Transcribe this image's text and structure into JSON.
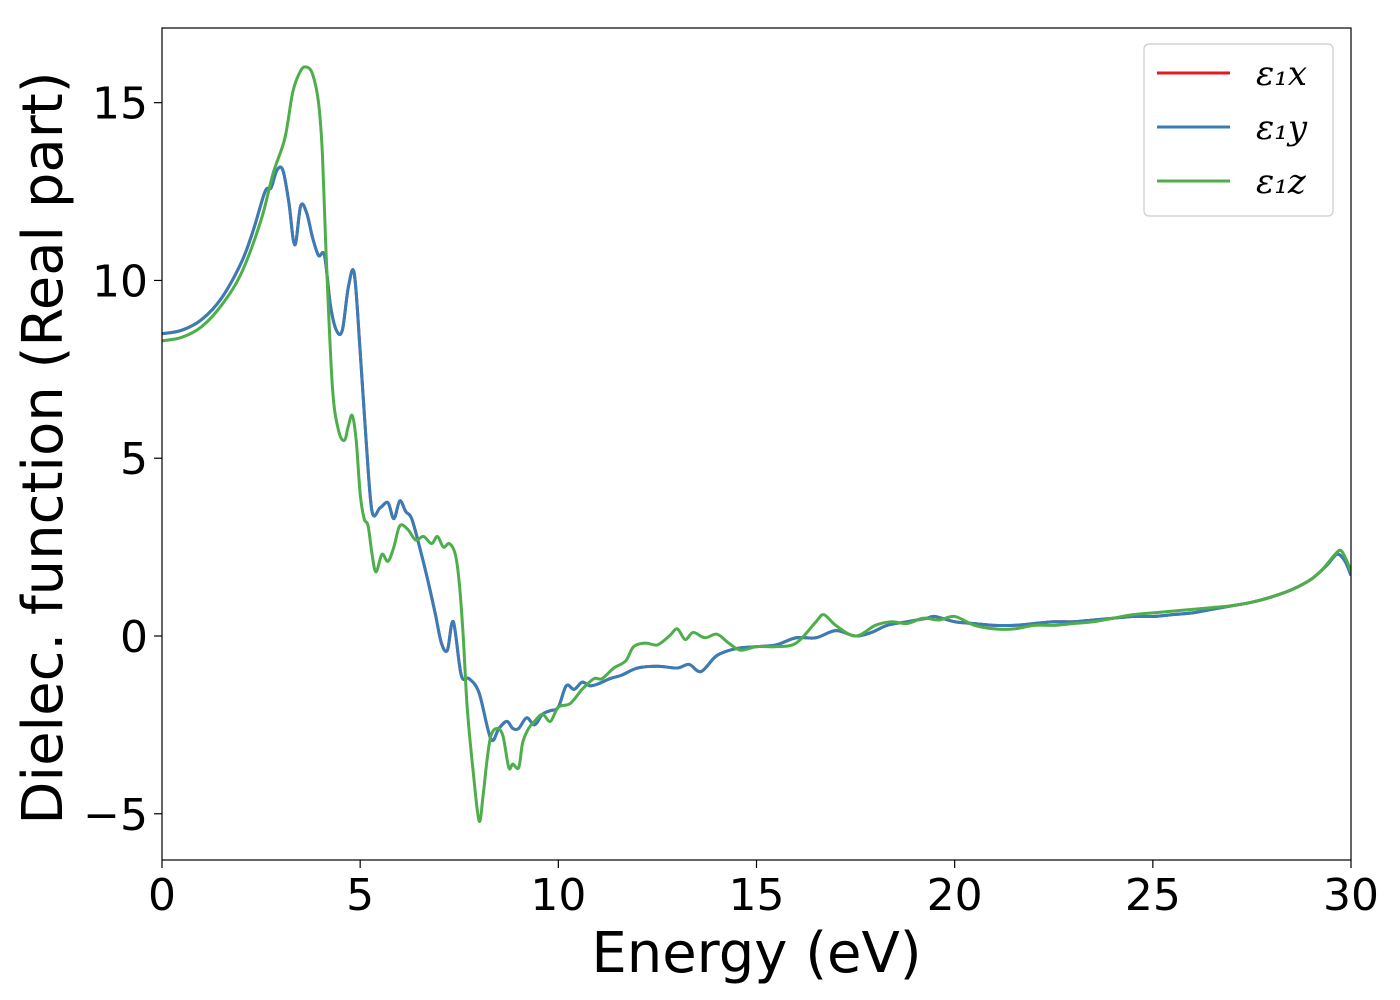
{
  "chart_data": {
    "type": "line",
    "xlabel": "Energy (eV)",
    "ylabel": "Dielec. function (Real part)",
    "xlim": [
      0,
      30
    ],
    "ylim": [
      -6.3,
      17.1
    ],
    "xticks": [
      0,
      5,
      10,
      15,
      20,
      25,
      30
    ],
    "xtick_labels": [
      "0",
      "5",
      "10",
      "15",
      "20",
      "25",
      "30"
    ],
    "yticks": [
      -5,
      0,
      5,
      10,
      15
    ],
    "ytick_labels": [
      "−5",
      "0",
      "5",
      "10",
      "15"
    ],
    "grid": false,
    "legend_position": "top-right",
    "series": [
      {
        "name": "ε₁x",
        "color": "#e41a1c",
        "x": [
          0,
          0.5,
          1,
          1.5,
          2,
          2.3,
          2.6,
          2.75,
          2.9,
          3.05,
          3.2,
          3.35,
          3.5,
          3.65,
          3.8,
          3.95,
          4.1,
          4.25,
          4.4,
          4.55,
          4.7,
          4.85,
          5,
          5.15,
          5.3,
          5.5,
          5.7,
          5.85,
          6,
          6.15,
          6.3,
          6.5,
          6.7,
          6.9,
          7.05,
          7.2,
          7.35,
          7.55,
          7.75,
          8,
          8.3,
          8.5,
          8.7,
          8.85,
          9,
          9.2,
          9.4,
          9.6,
          9.8,
          10,
          10.2,
          10.4,
          10.6,
          10.8,
          11,
          11.3,
          11.6,
          12,
          12.5,
          13,
          13.3,
          13.6,
          14,
          14.5,
          15,
          15.5,
          16,
          16.5,
          17,
          17.5,
          17.9,
          18.3,
          18.8,
          19.3,
          19.5,
          20,
          20.5,
          21,
          21.5,
          22,
          22.5,
          23,
          23.5,
          24,
          24.5,
          25,
          25.5,
          26,
          26.5,
          27,
          27.5,
          28,
          28.5,
          29,
          29.4,
          29.65,
          29.85,
          30
        ],
        "y": [
          8.5,
          8.6,
          8.9,
          9.5,
          10.5,
          11.4,
          12.5,
          12.6,
          13.1,
          13.1,
          12.2,
          11,
          12.1,
          11.9,
          11.2,
          10.7,
          10.7,
          9.3,
          8.6,
          8.6,
          9.8,
          10.2,
          8,
          5.5,
          3.5,
          3.6,
          3.75,
          3.3,
          3.8,
          3.5,
          3.3,
          2.5,
          1.6,
          0.6,
          -0.2,
          -0.4,
          0.4,
          -1.1,
          -1.2,
          -1.6,
          -2.9,
          -2.6,
          -2.4,
          -2.6,
          -2.6,
          -2.3,
          -2.5,
          -2.2,
          -2.1,
          -2,
          -1.4,
          -1.5,
          -1.3,
          -1.4,
          -1.35,
          -1.2,
          -1.1,
          -0.9,
          -0.85,
          -0.9,
          -0.8,
          -1,
          -0.55,
          -0.35,
          -0.3,
          -0.25,
          -0.05,
          -0.05,
          0.15,
          0,
          0.1,
          0.3,
          0.4,
          0.5,
          0.55,
          0.4,
          0.35,
          0.3,
          0.3,
          0.35,
          0.4,
          0.4,
          0.45,
          0.5,
          0.55,
          0.55,
          0.6,
          0.65,
          0.75,
          0.85,
          0.95,
          1.1,
          1.3,
          1.6,
          2,
          2.3,
          2.1,
          1.7
        ]
      },
      {
        "name": "ε₁y",
        "color": "#377eb8",
        "x": [
          0,
          0.5,
          1,
          1.5,
          2,
          2.3,
          2.6,
          2.75,
          2.9,
          3.05,
          3.2,
          3.35,
          3.5,
          3.65,
          3.8,
          3.95,
          4.1,
          4.25,
          4.4,
          4.55,
          4.7,
          4.85,
          5,
          5.15,
          5.3,
          5.5,
          5.7,
          5.85,
          6,
          6.15,
          6.3,
          6.5,
          6.7,
          6.9,
          7.05,
          7.2,
          7.35,
          7.55,
          7.75,
          8,
          8.3,
          8.5,
          8.7,
          8.85,
          9,
          9.2,
          9.4,
          9.6,
          9.8,
          10,
          10.2,
          10.4,
          10.6,
          10.8,
          11,
          11.3,
          11.6,
          12,
          12.5,
          13,
          13.3,
          13.6,
          14,
          14.5,
          15,
          15.5,
          16,
          16.5,
          17,
          17.5,
          17.9,
          18.3,
          18.8,
          19.3,
          19.5,
          20,
          20.5,
          21,
          21.5,
          22,
          22.5,
          23,
          23.5,
          24,
          24.5,
          25,
          25.5,
          26,
          26.5,
          27,
          27.5,
          28,
          28.5,
          29,
          29.4,
          29.65,
          29.85,
          30
        ],
        "y": [
          8.5,
          8.6,
          8.9,
          9.5,
          10.5,
          11.4,
          12.5,
          12.6,
          13.1,
          13.1,
          12.2,
          11,
          12.1,
          11.9,
          11.2,
          10.7,
          10.7,
          9.3,
          8.6,
          8.6,
          9.8,
          10.2,
          8,
          5.5,
          3.5,
          3.6,
          3.75,
          3.3,
          3.8,
          3.5,
          3.3,
          2.5,
          1.6,
          0.6,
          -0.2,
          -0.4,
          0.4,
          -1.1,
          -1.2,
          -1.6,
          -2.9,
          -2.6,
          -2.4,
          -2.6,
          -2.6,
          -2.3,
          -2.5,
          -2.2,
          -2.1,
          -2,
          -1.4,
          -1.5,
          -1.3,
          -1.4,
          -1.35,
          -1.2,
          -1.1,
          -0.9,
          -0.85,
          -0.9,
          -0.8,
          -1,
          -0.55,
          -0.35,
          -0.3,
          -0.25,
          -0.05,
          -0.05,
          0.15,
          0,
          0.1,
          0.3,
          0.4,
          0.5,
          0.55,
          0.4,
          0.35,
          0.3,
          0.3,
          0.35,
          0.4,
          0.4,
          0.45,
          0.5,
          0.55,
          0.55,
          0.6,
          0.65,
          0.75,
          0.85,
          0.95,
          1.1,
          1.3,
          1.6,
          2,
          2.3,
          2.1,
          1.7
        ]
      },
      {
        "name": "ε₁z",
        "color": "#4daf4a",
        "x": [
          0,
          0.5,
          1,
          1.5,
          2,
          2.5,
          2.8,
          3.1,
          3.3,
          3.5,
          3.65,
          3.8,
          3.95,
          4.05,
          4.15,
          4.3,
          4.45,
          4.6,
          4.7,
          4.8,
          4.9,
          5,
          5.1,
          5.2,
          5.3,
          5.4,
          5.55,
          5.7,
          5.85,
          6,
          6.2,
          6.4,
          6.6,
          6.8,
          6.95,
          7.1,
          7.25,
          7.4,
          7.5,
          7.6,
          7.7,
          7.85,
          8,
          8.1,
          8.2,
          8.3,
          8.45,
          8.6,
          8.75,
          8.85,
          9,
          9.1,
          9.25,
          9.4,
          9.6,
          9.8,
          10,
          10.3,
          10.6,
          10.9,
          11.1,
          11.4,
          11.7,
          11.9,
          12.2,
          12.5,
          12.8,
          13,
          13.2,
          13.4,
          13.7,
          14,
          14.3,
          14.6,
          15,
          15.5,
          16,
          16.5,
          16.7,
          17,
          17.5,
          18,
          18.4,
          18.8,
          19.2,
          19.6,
          20,
          20.5,
          21,
          21.5,
          22,
          22.5,
          23,
          23.5,
          24,
          24.5,
          25,
          25.5,
          26,
          26.5,
          27,
          27.5,
          28,
          28.5,
          29,
          29.3,
          29.6,
          29.75,
          29.9,
          30
        ],
        "y": [
          8.3,
          8.4,
          8.7,
          9.3,
          10.2,
          11.7,
          13,
          14,
          15.3,
          15.9,
          16,
          15.8,
          15,
          13.5,
          10.5,
          7,
          5.8,
          5.5,
          5.9,
          6.2,
          5.5,
          4,
          3.3,
          3.1,
          2.3,
          1.8,
          2.3,
          2.1,
          2.5,
          3.1,
          3,
          2.7,
          2.8,
          2.6,
          2.8,
          2.5,
          2.6,
          2.3,
          1.5,
          0,
          -2,
          -3.8,
          -5.2,
          -4.5,
          -3.5,
          -2.8,
          -2.6,
          -2.8,
          -3.7,
          -3.6,
          -3.7,
          -3,
          -2.6,
          -2.4,
          -2.2,
          -2.4,
          -2,
          -1.9,
          -1.5,
          -1.2,
          -1.2,
          -0.9,
          -0.7,
          -0.3,
          -0.2,
          -0.25,
          0,
          0.2,
          -0.1,
          0.1,
          -0.05,
          0.05,
          -0.2,
          -0.4,
          -0.3,
          -0.3,
          -0.2,
          0.4,
          0.6,
          0.3,
          0,
          0.3,
          0.4,
          0.35,
          0.5,
          0.45,
          0.55,
          0.3,
          0.2,
          0.2,
          0.3,
          0.3,
          0.35,
          0.4,
          0.5,
          0.6,
          0.65,
          0.7,
          0.75,
          0.8,
          0.85,
          0.95,
          1.1,
          1.3,
          1.6,
          1.9,
          2.3,
          2.4,
          2.1,
          1.8
        ]
      }
    ]
  }
}
